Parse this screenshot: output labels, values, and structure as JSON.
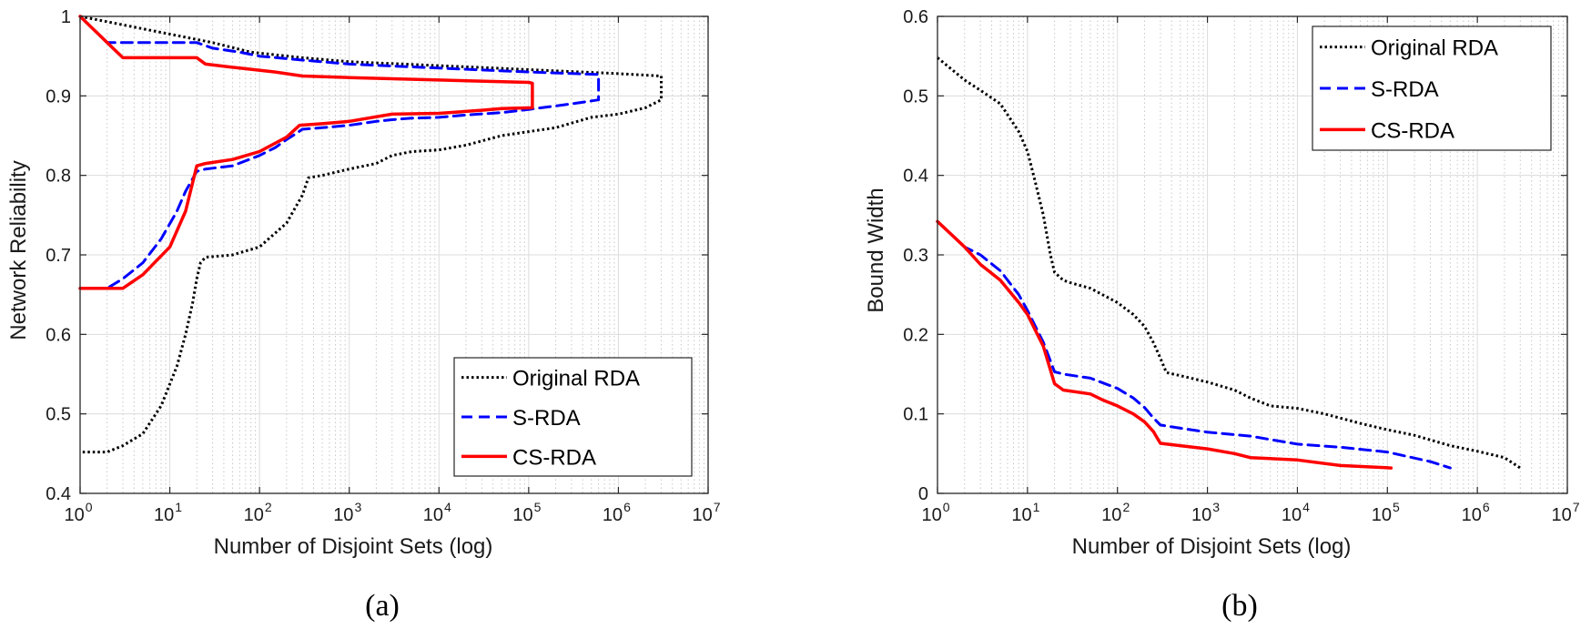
{
  "chart_data": [
    {
      "type": "line",
      "caption": "(a)",
      "xlabel": "Number of Disjoint Sets (log)",
      "ylabel": "Network Reliability",
      "xscale": "log",
      "xlim": [
        1,
        10000000
      ],
      "ylim": [
        0.4,
        1.0
      ],
      "xticks": [
        1,
        10,
        100,
        1000,
        10000,
        100000,
        1000000,
        10000000
      ],
      "yticks": [
        0.4,
        0.5,
        0.6,
        0.7,
        0.8,
        0.9,
        1.0
      ],
      "ytick_labels": [
        "0.4",
        "0.5",
        "0.6",
        "0.7",
        "0.8",
        "0.9",
        "1"
      ],
      "grid": true,
      "legend": "bottom-right",
      "series": [
        {
          "name": "Original RDA",
          "color": "#000000",
          "style": "dotted",
          "upper": {
            "x": [
              1,
              30,
              80,
              300,
              1000,
              10000,
              100000,
              1000000,
              3000000
            ],
            "y": [
              1.0,
              0.967,
              0.955,
              0.948,
              0.943,
              0.938,
              0.933,
              0.928,
              0.925
            ]
          },
          "lower": {
            "x": [
              1,
              2,
              3,
              5,
              8,
              12,
              15,
              18,
              20,
              22,
              25,
              50,
              100,
              200,
              300,
              350,
              500,
              1000,
              2000,
              3000,
              5000,
              10000,
              20000,
              50000,
              100000,
              200000,
              500000,
              1000000,
              2000000,
              3000000
            ],
            "y": [
              0.452,
              0.452,
              0.46,
              0.475,
              0.51,
              0.56,
              0.6,
              0.64,
              0.67,
              0.69,
              0.697,
              0.7,
              0.71,
              0.74,
              0.775,
              0.797,
              0.8,
              0.808,
              0.815,
              0.825,
              0.83,
              0.832,
              0.838,
              0.85,
              0.855,
              0.86,
              0.873,
              0.877,
              0.885,
              0.895
            ]
          }
        },
        {
          "name": "S-RDA",
          "color": "#0000ff",
          "style": "dashed",
          "upper": {
            "x": [
              1,
              2,
              20,
              30,
              60,
              100,
              300,
              1000,
              10000,
              100000,
              600000
            ],
            "y": [
              1.0,
              0.967,
              0.967,
              0.96,
              0.955,
              0.95,
              0.945,
              0.94,
              0.935,
              0.93,
              0.927
            ]
          },
          "lower": {
            "x": [
              1,
              2,
              3,
              5,
              8,
              12,
              15,
              20,
              25,
              50,
              100,
              150,
              200,
              250,
              300,
              500,
              1000,
              2000,
              3000,
              5000,
              10000,
              20000,
              50000,
              100000,
              300000,
              600000
            ],
            "y": [
              0.658,
              0.658,
              0.67,
              0.69,
              0.72,
              0.755,
              0.78,
              0.805,
              0.808,
              0.812,
              0.825,
              0.835,
              0.845,
              0.852,
              0.858,
              0.86,
              0.863,
              0.868,
              0.87,
              0.872,
              0.873,
              0.876,
              0.879,
              0.883,
              0.89,
              0.895
            ]
          }
        },
        {
          "name": "CS-RDA",
          "color": "#ff0000",
          "style": "solid",
          "upper": {
            "x": [
              1,
              3,
              20,
              25,
              60,
              150,
              300,
              1000,
              10000,
              100000,
              110000
            ],
            "y": [
              1.0,
              0.948,
              0.948,
              0.94,
              0.935,
              0.93,
              0.925,
              0.923,
              0.92,
              0.917,
              0.916
            ]
          },
          "lower": {
            "x": [
              1,
              3,
              5,
              10,
              15,
              20,
              25,
              50,
              100,
              200,
              280,
              500,
              1000,
              3000,
              10000,
              30000,
              50000,
              110000
            ],
            "y": [
              0.658,
              0.658,
              0.675,
              0.71,
              0.755,
              0.812,
              0.815,
              0.82,
              0.83,
              0.848,
              0.863,
              0.865,
              0.868,
              0.877,
              0.878,
              0.882,
              0.884,
              0.885
            ]
          }
        }
      ]
    },
    {
      "type": "line",
      "caption": "(b)",
      "xlabel": "Number of Disjoint Sets (log)",
      "ylabel": "Bound Width",
      "xscale": "log",
      "xlim": [
        1,
        10000000
      ],
      "ylim": [
        0,
        0.6
      ],
      "xticks": [
        1,
        10,
        100,
        1000,
        10000,
        100000,
        1000000,
        10000000
      ],
      "yticks": [
        0,
        0.1,
        0.2,
        0.3,
        0.4,
        0.5,
        0.6
      ],
      "ytick_labels": [
        "0",
        "0.1",
        "0.2",
        "0.3",
        "0.4",
        "0.5",
        "0.6"
      ],
      "grid": true,
      "legend": "top-right",
      "series": [
        {
          "name": "Original RDA",
          "color": "#000000",
          "style": "dotted",
          "x": [
            1,
            2,
            3,
            5,
            8,
            10,
            12,
            15,
            18,
            20,
            25,
            30,
            50,
            100,
            150,
            200,
            250,
            300,
            350,
            500,
            1000,
            2000,
            3000,
            5000,
            10000,
            20000,
            50000,
            100000,
            200000,
            500000,
            1000000,
            2000000,
            3000000
          ],
          "y": [
            0.548,
            0.52,
            0.507,
            0.49,
            0.455,
            0.43,
            0.395,
            0.35,
            0.3,
            0.278,
            0.268,
            0.265,
            0.258,
            0.24,
            0.225,
            0.21,
            0.19,
            0.17,
            0.152,
            0.148,
            0.14,
            0.13,
            0.12,
            0.11,
            0.107,
            0.1,
            0.088,
            0.08,
            0.073,
            0.06,
            0.053,
            0.045,
            0.032
          ]
        },
        {
          "name": "S-RDA",
          "color": "#0000ff",
          "style": "dashed",
          "x": [
            1,
            2,
            3,
            5,
            8,
            10,
            15,
            20,
            25,
            50,
            100,
            150,
            200,
            250,
            300,
            500,
            1000,
            3000,
            10000,
            30000,
            100000,
            300000,
            500000
          ],
          "y": [
            0.342,
            0.31,
            0.3,
            0.28,
            0.25,
            0.23,
            0.19,
            0.153,
            0.15,
            0.145,
            0.132,
            0.12,
            0.108,
            0.095,
            0.086,
            0.082,
            0.077,
            0.072,
            0.062,
            0.058,
            0.052,
            0.04,
            0.032
          ]
        },
        {
          "name": "CS-RDA",
          "color": "#ff0000",
          "style": "solid",
          "x": [
            1,
            2,
            3,
            5,
            8,
            10,
            15,
            20,
            25,
            50,
            70,
            100,
            150,
            200,
            250,
            300,
            500,
            1000,
            2000,
            3000,
            10000,
            30000,
            110000
          ],
          "y": [
            0.342,
            0.31,
            0.288,
            0.268,
            0.24,
            0.225,
            0.185,
            0.138,
            0.13,
            0.125,
            0.117,
            0.11,
            0.1,
            0.09,
            0.078,
            0.063,
            0.06,
            0.056,
            0.05,
            0.045,
            0.042,
            0.035,
            0.032
          ]
        }
      ]
    }
  ]
}
